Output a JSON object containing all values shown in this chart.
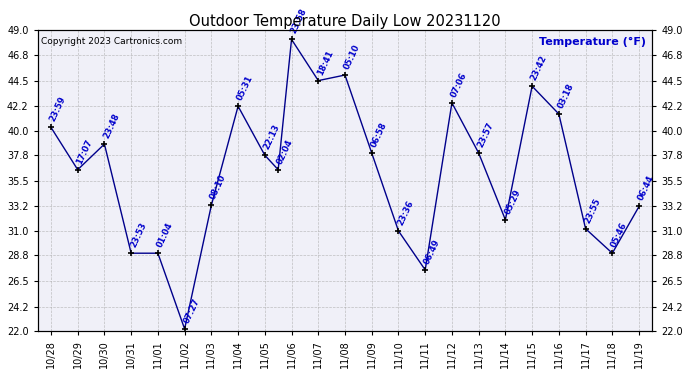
{
  "title": "Outdoor Temperature Daily Low 20231120",
  "copyright_text": "Copyright 2023 Cartronics.com",
  "ylabel_right": "Temperature (°F)",
  "background_color": "#ffffff",
  "plot_bg_color": "#f0f0f8",
  "grid_color": "#aaaaaa",
  "line_color": "#00008B",
  "marker_color": "#000000",
  "label_color": "#0000cc",
  "title_color": "#000000",
  "ylim": [
    22.0,
    49.0
  ],
  "yticks": [
    22.0,
    24.2,
    26.5,
    28.8,
    31.0,
    33.2,
    35.5,
    37.8,
    40.0,
    42.2,
    44.5,
    46.8,
    49.0
  ],
  "x_data": [
    0,
    1,
    2,
    3,
    4,
    5,
    6,
    7,
    8,
    8.5,
    9,
    10,
    11,
    12,
    13,
    14,
    15,
    16,
    17,
    18,
    19,
    20,
    21,
    22
  ],
  "temperatures": [
    40.3,
    36.5,
    38.8,
    29.0,
    29.0,
    22.2,
    33.3,
    42.2,
    37.8,
    36.5,
    48.2,
    44.5,
    45.0,
    38.0,
    31.0,
    27.5,
    42.5,
    38.0,
    32.0,
    44.0,
    41.5,
    31.2,
    29.0,
    33.2
  ],
  "time_labels": [
    "23:59",
    "17:07",
    "23:48",
    "23:53",
    "01:04",
    "07:27",
    "08:10",
    "05:31",
    "22:13",
    "02:04",
    "23:58",
    "18:41",
    "05:10",
    "06:58",
    "23:36",
    "06:49",
    "07:06",
    "23:57",
    "05:29",
    "23:42",
    "03:18",
    "23:55",
    "05:46",
    "06:44"
  ],
  "x_tick_positions": [
    0,
    1,
    2,
    3,
    4,
    5,
    6,
    7,
    8,
    9,
    10,
    11,
    12,
    13,
    14,
    15,
    16,
    17,
    18,
    19,
    20,
    21,
    22
  ],
  "x_tick_labels": [
    "10/28",
    "10/29",
    "10/30",
    "10/31",
    "11/01",
    "11/02",
    "11/03",
    "11/04",
    "11/05",
    "11/06",
    "11/07",
    "11/08",
    "11/09",
    "11/10",
    "11/11",
    "11/12",
    "11/13",
    "11/14",
    "11/15",
    "11/16",
    "11/17",
    "11/18",
    "11/19"
  ]
}
